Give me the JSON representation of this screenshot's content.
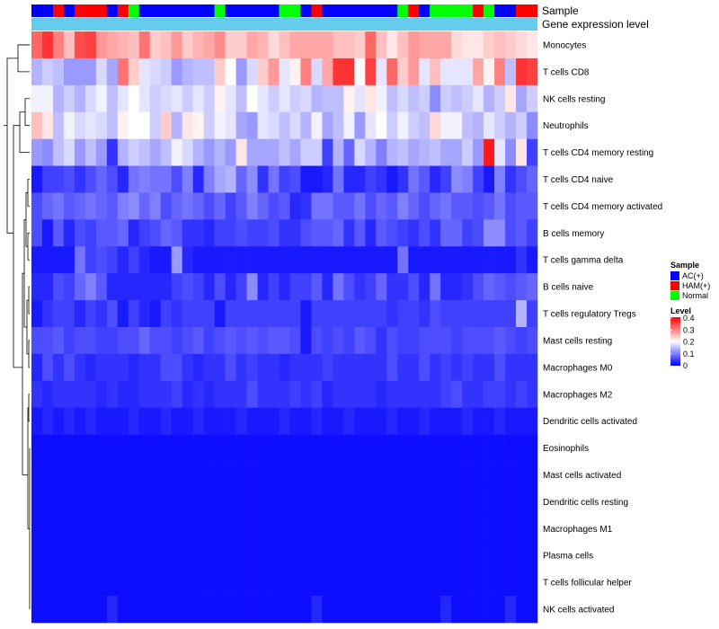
{
  "chart_data": {
    "type": "heatmap",
    "annotations": {
      "sample_label": "Sample",
      "expression_label": "Gene expression level",
      "expression_color": "#66ccee"
    },
    "samples": [
      "AC",
      "AC",
      "HAM",
      "AC",
      "HAM",
      "HAM",
      "HAM",
      "AC",
      "HAM",
      "Normal",
      "AC",
      "AC",
      "AC",
      "AC",
      "AC",
      "AC",
      "AC",
      "Normal",
      "AC",
      "AC",
      "AC",
      "AC",
      "AC",
      "Normal",
      "Normal",
      "AC",
      "HAM",
      "AC",
      "AC",
      "AC",
      "AC",
      "AC",
      "AC",
      "AC",
      "Normal",
      "HAM",
      "AC",
      "Normal",
      "Normal",
      "Normal",
      "Normal",
      "HAM",
      "Normal",
      "AC",
      "AC",
      "HAM",
      "HAM"
    ],
    "sample_colors": {
      "AC": "#0000ff",
      "HAM": "#ff0000",
      "Normal": "#00ff00"
    },
    "rows": [
      "Monocytes",
      "T cells CD8",
      "NK cells resting",
      "Neutrophils",
      "T cells CD4 memory resting",
      "T cells CD4 naive",
      "T cells CD4 memory activated",
      "B cells memory",
      "T cells gamma delta",
      "B cells naive",
      "T cells regulatory  Tregs",
      "Mast cells resting",
      "Macrophages M0",
      "Macrophages M2",
      "Dendritic cells activated",
      "Eosinophils",
      "Mast cells activated",
      "Dendritic cells resting",
      "Macrophages M1",
      "Plasma cells",
      "T cells follicular helper",
      "NK cells activated"
    ],
    "values": [
      [
        0.32,
        0.36,
        0.3,
        0.25,
        0.34,
        0.35,
        0.28,
        0.27,
        0.26,
        0.25,
        0.31,
        0.24,
        0.25,
        0.28,
        0.24,
        0.26,
        0.27,
        0.29,
        0.24,
        0.24,
        0.27,
        0.26,
        0.23,
        0.25,
        0.27,
        0.27,
        0.27,
        0.27,
        0.25,
        0.25,
        0.24,
        0.32,
        0.25,
        0.22,
        0.25,
        0.28,
        0.27,
        0.27,
        0.27,
        0.23,
        0.22,
        0.22,
        0.24,
        0.25,
        0.24,
        0.23,
        0.22
      ],
      [
        0.14,
        0.16,
        0.15,
        0.12,
        0.12,
        0.12,
        0.17,
        0.13,
        0.31,
        0.24,
        0.18,
        0.17,
        0.16,
        0.12,
        0.14,
        0.15,
        0.15,
        0.24,
        0.2,
        0.12,
        0.17,
        0.24,
        0.28,
        0.18,
        0.21,
        0.3,
        0.17,
        0.27,
        0.36,
        0.36,
        0.2,
        0.35,
        0.18,
        0.32,
        0.24,
        0.28,
        0.18,
        0.25,
        0.18,
        0.18,
        0.18,
        0.27,
        0.21,
        0.3,
        0.15,
        0.36,
        0.35
      ],
      [
        0.19,
        0.19,
        0.14,
        0.16,
        0.14,
        0.17,
        0.19,
        0.15,
        0.18,
        0.2,
        0.18,
        0.16,
        0.17,
        0.18,
        0.16,
        0.18,
        0.16,
        0.21,
        0.18,
        0.15,
        0.2,
        0.18,
        0.16,
        0.18,
        0.16,
        0.17,
        0.14,
        0.15,
        0.15,
        0.21,
        0.18,
        0.22,
        0.19,
        0.15,
        0.17,
        0.15,
        0.16,
        0.11,
        0.16,
        0.15,
        0.16,
        0.18,
        0.14,
        0.16,
        0.22,
        0.13,
        0.16
      ],
      [
        0.25,
        0.22,
        0.15,
        0.19,
        0.17,
        0.18,
        0.17,
        0.15,
        0.21,
        0.2,
        0.2,
        0.16,
        0.24,
        0.14,
        0.22,
        0.21,
        0.16,
        0.19,
        0.18,
        0.13,
        0.12,
        0.18,
        0.17,
        0.15,
        0.17,
        0.14,
        0.19,
        0.13,
        0.15,
        0.19,
        0.12,
        0.18,
        0.2,
        0.16,
        0.19,
        0.16,
        0.15,
        0.23,
        0.19,
        0.19,
        0.15,
        0.14,
        0.18,
        0.16,
        0.14,
        0.16,
        0.11
      ],
      [
        0.12,
        0.11,
        0.15,
        0.17,
        0.12,
        0.15,
        0.12,
        0.04,
        0.14,
        0.16,
        0.15,
        0.13,
        0.15,
        0.19,
        0.17,
        0.14,
        0.12,
        0.14,
        0.12,
        0.22,
        0.13,
        0.13,
        0.13,
        0.15,
        0.13,
        0.16,
        0.16,
        0.05,
        0.14,
        0.08,
        0.17,
        0.14,
        0.1,
        0.14,
        0.15,
        0.13,
        0.14,
        0.15,
        0.13,
        0.13,
        0.16,
        0.12,
        0.38,
        0.18,
        0.11,
        0.22,
        0.05
      ],
      [
        0.02,
        0.05,
        0.05,
        0.06,
        0.04,
        0.06,
        0.08,
        0.06,
        0.03,
        0.09,
        0.1,
        0.09,
        0.09,
        0.06,
        0.1,
        0.03,
        0.1,
        0.13,
        0.14,
        0.08,
        0.11,
        0.04,
        0.09,
        0.05,
        0.06,
        0.02,
        0.02,
        0.03,
        0.09,
        0.03,
        0.03,
        0.05,
        0.04,
        0.02,
        0.04,
        0.09,
        0.07,
        0.03,
        0.05,
        0.11,
        0.1,
        0.05,
        0.02,
        0.1,
        0.04,
        0.06,
        0.08
      ],
      [
        0.06,
        0.08,
        0.09,
        0.07,
        0.08,
        0.09,
        0.08,
        0.07,
        0.1,
        0.11,
        0.08,
        0.1,
        0.06,
        0.08,
        0.09,
        0.08,
        0.06,
        0.08,
        0.05,
        0.07,
        0.1,
        0.08,
        0.06,
        0.07,
        0.03,
        0.04,
        0.09,
        0.09,
        0.07,
        0.07,
        0.09,
        0.06,
        0.08,
        0.07,
        0.1,
        0.08,
        0.06,
        0.08,
        0.09,
        0.07,
        0.07,
        0.06,
        0.07,
        0.09,
        0.06,
        0.07,
        0.07
      ],
      [
        0.06,
        0.02,
        0.07,
        0.03,
        0.06,
        0.05,
        0.07,
        0.07,
        0.08,
        0.03,
        0.05,
        0.06,
        0.08,
        0.07,
        0.04,
        0.04,
        0.03,
        0.05,
        0.05,
        0.06,
        0.05,
        0.05,
        0.06,
        0.04,
        0.04,
        0.06,
        0.07,
        0.07,
        0.08,
        0.04,
        0.07,
        0.03,
        0.07,
        0.06,
        0.05,
        0.04,
        0.06,
        0.04,
        0.08,
        0.08,
        0.05,
        0.06,
        0.11,
        0.11,
        0.06,
        0.07,
        0.05
      ],
      [
        0.02,
        0.02,
        0.02,
        0.02,
        0.09,
        0.05,
        0.06,
        0.05,
        0.03,
        0.05,
        0.03,
        0.02,
        0.02,
        0.12,
        0.03,
        0.02,
        0.02,
        0.02,
        0.02,
        0.02,
        0.02,
        0.02,
        0.02,
        0.02,
        0.02,
        0.02,
        0.02,
        0.02,
        0.02,
        0.02,
        0.02,
        0.02,
        0.02,
        0.02,
        0.09,
        0.02,
        0.02,
        0.02,
        0.02,
        0.02,
        0.02,
        0.02,
        0.02,
        0.02,
        0.02,
        0.04,
        0.02
      ],
      [
        0.03,
        0.03,
        0.06,
        0.05,
        0.08,
        0.1,
        0.07,
        0.03,
        0.03,
        0.03,
        0.03,
        0.03,
        0.03,
        0.05,
        0.06,
        0.05,
        0.03,
        0.06,
        0.03,
        0.05,
        0.11,
        0.03,
        0.05,
        0.03,
        0.05,
        0.05,
        0.07,
        0.03,
        0.09,
        0.06,
        0.04,
        0.05,
        0.08,
        0.04,
        0.04,
        0.06,
        0.03,
        0.09,
        0.03,
        0.03,
        0.04,
        0.06,
        0.08,
        0.07,
        0.06,
        0.07,
        0.08
      ],
      [
        0.02,
        0.04,
        0.05,
        0.05,
        0.03,
        0.05,
        0.04,
        0.06,
        0.02,
        0.05,
        0.03,
        0.02,
        0.05,
        0.04,
        0.05,
        0.05,
        0.05,
        0.02,
        0.05,
        0.05,
        0.05,
        0.05,
        0.05,
        0.05,
        0.05,
        0.02,
        0.05,
        0.05,
        0.05,
        0.05,
        0.05,
        0.05,
        0.05,
        0.04,
        0.05,
        0.05,
        0.04,
        0.06,
        0.05,
        0.05,
        0.05,
        0.05,
        0.05,
        0.05,
        0.05,
        0.14,
        0.05
      ],
      [
        0.06,
        0.06,
        0.07,
        0.05,
        0.06,
        0.06,
        0.05,
        0.05,
        0.06,
        0.06,
        0.08,
        0.06,
        0.06,
        0.05,
        0.06,
        0.07,
        0.05,
        0.06,
        0.07,
        0.06,
        0.07,
        0.06,
        0.07,
        0.07,
        0.06,
        0.02,
        0.06,
        0.05,
        0.06,
        0.05,
        0.07,
        0.06,
        0.04,
        0.06,
        0.05,
        0.05,
        0.06,
        0.06,
        0.06,
        0.05,
        0.06,
        0.06,
        0.06,
        0.07,
        0.06,
        0.05,
        0.06
      ],
      [
        0.03,
        0.06,
        0.04,
        0.06,
        0.04,
        0.03,
        0.04,
        0.04,
        0.04,
        0.03,
        0.04,
        0.04,
        0.06,
        0.06,
        0.04,
        0.03,
        0.04,
        0.04,
        0.06,
        0.04,
        0.05,
        0.04,
        0.04,
        0.03,
        0.04,
        0.04,
        0.04,
        0.05,
        0.04,
        0.04,
        0.04,
        0.04,
        0.04,
        0.06,
        0.04,
        0.04,
        0.06,
        0.04,
        0.05,
        0.04,
        0.05,
        0.04,
        0.04,
        0.06,
        0.04,
        0.04,
        0.04
      ],
      [
        0.04,
        0.03,
        0.04,
        0.04,
        0.04,
        0.04,
        0.03,
        0.04,
        0.03,
        0.03,
        0.04,
        0.04,
        0.04,
        0.05,
        0.03,
        0.04,
        0.03,
        0.04,
        0.04,
        0.04,
        0.06,
        0.04,
        0.04,
        0.04,
        0.05,
        0.04,
        0.05,
        0.03,
        0.04,
        0.04,
        0.04,
        0.04,
        0.03,
        0.04,
        0.04,
        0.04,
        0.04,
        0.04,
        0.05,
        0.06,
        0.04,
        0.04,
        0.05,
        0.05,
        0.04,
        0.05,
        0.04
      ],
      [
        0.02,
        0.03,
        0.02,
        0.03,
        0.02,
        0.03,
        0.02,
        0.02,
        0.02,
        0.03,
        0.02,
        0.02,
        0.03,
        0.02,
        0.02,
        0.03,
        0.02,
        0.02,
        0.02,
        0.03,
        0.02,
        0.02,
        0.02,
        0.03,
        0.02,
        0.02,
        0.03,
        0.02,
        0.02,
        0.03,
        0.02,
        0.02,
        0.02,
        0.03,
        0.02,
        0.02,
        0.03,
        0.02,
        0.02,
        0.02,
        0.03,
        0.02,
        0.02,
        0.03,
        0.02,
        0.02,
        0.02
      ],
      [
        0.01,
        0.01,
        0.01,
        0.01,
        0.01,
        0.01,
        0.01,
        0.01,
        0.01,
        0.01,
        0.01,
        0.01,
        0.01,
        0.01,
        0.01,
        0.01,
        0.01,
        0.01,
        0.01,
        0.01,
        0.01,
        0.01,
        0.01,
        0.01,
        0.01,
        0.01,
        0.01,
        0.01,
        0.01,
        0.01,
        0.01,
        0.01,
        0.01,
        0.01,
        0.01,
        0.01,
        0.01,
        0.01,
        0.01,
        0.01,
        0.01,
        0.01,
        0.01,
        0.01,
        0.01,
        0.01,
        0.01
      ],
      [
        0.01,
        0.01,
        0.01,
        0.01,
        0.01,
        0.01,
        0.01,
        0.01,
        0.01,
        0.01,
        0.01,
        0.01,
        0.01,
        0.01,
        0.01,
        0.01,
        0.01,
        0.01,
        0.01,
        0.01,
        0.01,
        0.01,
        0.01,
        0.01,
        0.01,
        0.01,
        0.01,
        0.01,
        0.01,
        0.01,
        0.01,
        0.01,
        0.01,
        0.01,
        0.01,
        0.01,
        0.01,
        0.01,
        0.01,
        0.01,
        0.01,
        0.01,
        0.01,
        0.01,
        0.01,
        0.01,
        0.01
      ],
      [
        0.01,
        0.01,
        0.01,
        0.01,
        0.01,
        0.01,
        0.01,
        0.01,
        0.01,
        0.01,
        0.01,
        0.01,
        0.01,
        0.01,
        0.01,
        0.01,
        0.01,
        0.01,
        0.01,
        0.01,
        0.01,
        0.01,
        0.01,
        0.01,
        0.01,
        0.01,
        0.01,
        0.01,
        0.01,
        0.01,
        0.01,
        0.01,
        0.01,
        0.01,
        0.01,
        0.01,
        0.01,
        0.01,
        0.01,
        0.01,
        0.01,
        0.01,
        0.01,
        0.01,
        0.01,
        0.01,
        0.01
      ],
      [
        0.01,
        0.01,
        0.01,
        0.01,
        0.01,
        0.01,
        0.01,
        0.01,
        0.01,
        0.01,
        0.01,
        0.01,
        0.01,
        0.01,
        0.01,
        0.01,
        0.01,
        0.01,
        0.01,
        0.01,
        0.01,
        0.01,
        0.01,
        0.01,
        0.01,
        0.01,
        0.01,
        0.01,
        0.01,
        0.01,
        0.01,
        0.01,
        0.01,
        0.01,
        0.01,
        0.01,
        0.01,
        0.01,
        0.01,
        0.01,
        0.01,
        0.01,
        0.01,
        0.01,
        0.01,
        0.01,
        0.01
      ],
      [
        0.01,
        0.01,
        0.01,
        0.01,
        0.01,
        0.01,
        0.01,
        0.01,
        0.01,
        0.01,
        0.01,
        0.01,
        0.01,
        0.01,
        0.01,
        0.01,
        0.01,
        0.01,
        0.01,
        0.01,
        0.01,
        0.01,
        0.01,
        0.01,
        0.01,
        0.01,
        0.01,
        0.01,
        0.01,
        0.01,
        0.01,
        0.01,
        0.01,
        0.01,
        0.01,
        0.01,
        0.01,
        0.01,
        0.01,
        0.01,
        0.01,
        0.01,
        0.01,
        0.01,
        0.01,
        0.01,
        0.01
      ],
      [
        0.01,
        0.01,
        0.01,
        0.01,
        0.01,
        0.01,
        0.01,
        0.01,
        0.01,
        0.01,
        0.01,
        0.01,
        0.01,
        0.01,
        0.01,
        0.01,
        0.01,
        0.01,
        0.01,
        0.01,
        0.01,
        0.01,
        0.01,
        0.01,
        0.01,
        0.01,
        0.01,
        0.01,
        0.01,
        0.01,
        0.01,
        0.01,
        0.01,
        0.01,
        0.01,
        0.01,
        0.01,
        0.01,
        0.01,
        0.01,
        0.01,
        0.01,
        0.01,
        0.01,
        0.01,
        0.01,
        0.01
      ],
      [
        0.01,
        0.01,
        0.01,
        0.01,
        0.01,
        0.01,
        0.01,
        0.03,
        0.01,
        0.01,
        0.01,
        0.01,
        0.01,
        0.01,
        0.01,
        0.01,
        0.01,
        0.01,
        0.01,
        0.01,
        0.01,
        0.01,
        0.01,
        0.01,
        0.01,
        0.01,
        0.03,
        0.01,
        0.01,
        0.01,
        0.01,
        0.01,
        0.01,
        0.01,
        0.01,
        0.01,
        0.01,
        0.01,
        0.03,
        0.01,
        0.01,
        0.01,
        0.01,
        0.01,
        0.03,
        0.01,
        0.01
      ]
    ],
    "color_scale": {
      "min": 0,
      "mid": 0.2,
      "max": 0.4,
      "low": "#0000ff",
      "mid_color": "#ffffff",
      "high": "#ff0000"
    },
    "legend": {
      "sample_title": "Sample",
      "sample_entries": [
        {
          "label": "AC(+)",
          "color": "#0000ff"
        },
        {
          "label": "HAM(+)",
          "color": "#ff0000"
        },
        {
          "label": "Normal",
          "color": "#00ff00"
        }
      ],
      "level_title": "Level",
      "level_ticks": [
        "0.4",
        "0.3",
        "0.2",
        "0.1",
        "0"
      ],
      "placement": "right"
    }
  }
}
